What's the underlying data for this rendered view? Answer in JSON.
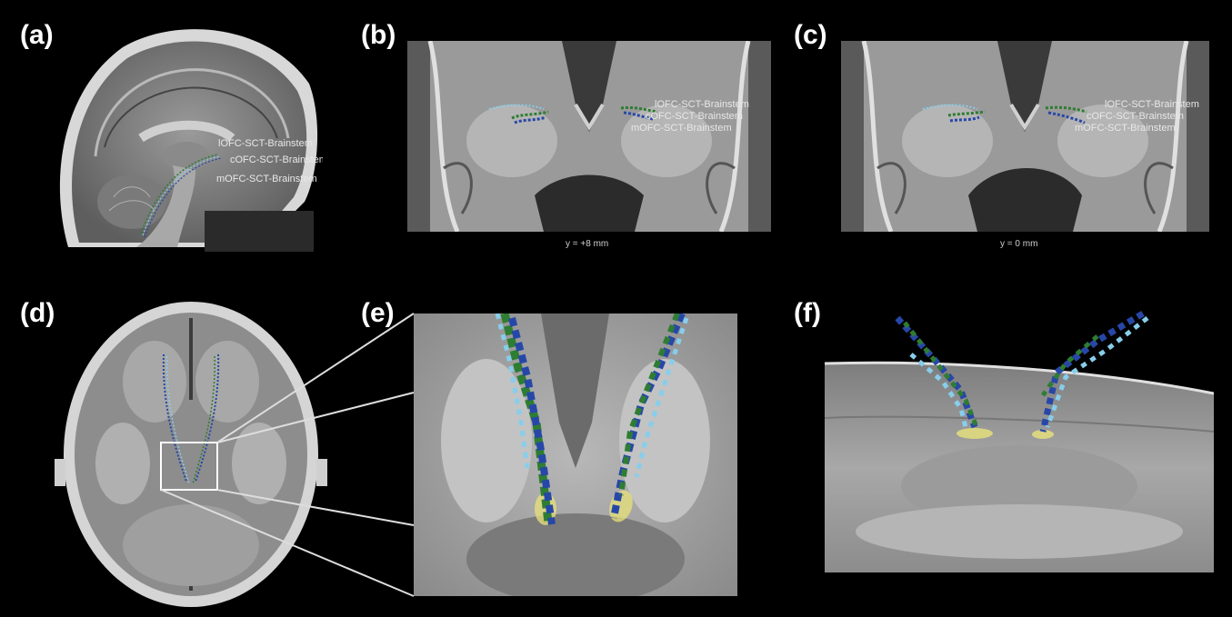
{
  "panels": [
    {
      "letter": "(a)"
    },
    {
      "letter": "(b)",
      "coord": "y = +8 mm"
    },
    {
      "letter": "(c)",
      "coord": "y = 0 mm"
    },
    {
      "letter": "(d)"
    },
    {
      "letter": "(e)"
    },
    {
      "letter": "(f)"
    }
  ],
  "tract_labels": [
    "lOFC-SCT-Brainstem",
    "cOFC-SCT-Brainstem",
    "mOFC-SCT-Brainstem"
  ],
  "colors": {
    "lofc": "#87ceeb",
    "cofc": "#2e7d32",
    "mofc": "#2747a8",
    "vta": "#e8e27a"
  }
}
